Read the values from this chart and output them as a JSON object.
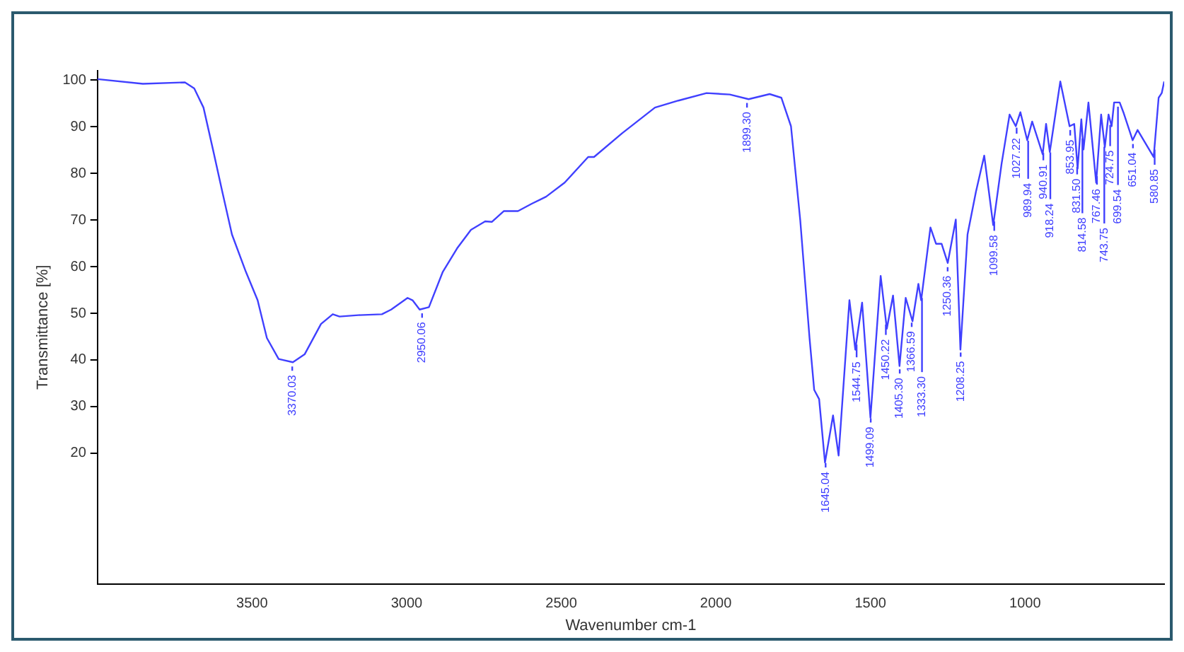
{
  "chart_data": {
    "type": "line",
    "xlabel": "Wavenumber cm-1",
    "ylabel": "Transmittance [%]",
    "xlim": [
      4000,
      550
    ],
    "xticks": [
      3500,
      3000,
      2500,
      2000,
      1500,
      1000
    ],
    "ylim": [
      -8,
      102
    ],
    "yticks": [
      20,
      30,
      40,
      50,
      60,
      70,
      80,
      90,
      100
    ],
    "grid": false,
    "series": [
      {
        "color": "#4040ff",
        "x": [
          4000,
          3853,
          3717,
          3687,
          3657,
          3626,
          3596,
          3565,
          3520,
          3482,
          3452,
          3414,
          3368,
          3330,
          3277,
          3239,
          3217,
          3156,
          3080,
          3050,
          2997,
          2981,
          2958,
          2928,
          2883,
          2837,
          2792,
          2746,
          2724,
          2686,
          2640,
          2595,
          2549,
          2489,
          2413,
          2394,
          2303,
          2197,
          2121,
          2030,
          1955,
          1894,
          1826,
          1788,
          1757,
          1727,
          1697,
          1682,
          1666,
          1647,
          1621,
          1603,
          1568,
          1549,
          1527,
          1500,
          1467,
          1447,
          1427,
          1406,
          1386,
          1364,
          1345,
          1336,
          1306,
          1288,
          1270,
          1250,
          1224,
          1209,
          1186,
          1159,
          1132,
          1103,
          1076,
          1050,
          1030,
          1015,
          993,
          977,
          943,
          932,
          920,
          886,
          856,
          841,
          830,
          818,
          811,
          795,
          770,
          754,
          742,
          730,
          720,
          712,
          694,
          682,
          652,
          636,
          584,
          568,
          558,
          550
        ],
        "values": [
          100.2,
          99.2,
          99.5,
          98.2,
          94.1,
          85,
          76,
          66.9,
          58.9,
          52.8,
          44.7,
          40.2,
          39.5,
          41.2,
          47.7,
          49.8,
          49.3,
          49.6,
          49.8,
          50.8,
          53.3,
          52.8,
          50.8,
          51.3,
          58.9,
          63.9,
          67.9,
          69.7,
          69.6,
          71.9,
          71.9,
          73.5,
          75,
          78,
          83.5,
          83.5,
          88.6,
          94.1,
          95.6,
          97.2,
          96.9,
          95.9,
          97,
          96.2,
          90.1,
          69.9,
          44.7,
          33.6,
          31.6,
          18,
          28.1,
          19.5,
          52.8,
          42.2,
          52.3,
          27.6,
          58,
          46.7,
          53.8,
          38.7,
          53.3,
          48.3,
          56.3,
          52.8,
          68.4,
          64.9,
          64.9,
          60.8,
          70.1,
          42.2,
          66.9,
          76,
          83.8,
          68.9,
          82,
          92.6,
          90.1,
          93.1,
          87.1,
          91.1,
          84.1,
          90.6,
          84.6,
          99.7,
          90.1,
          90.6,
          81,
          91.6,
          85.1,
          95.2,
          78,
          92.6,
          85.6,
          92.6,
          90.1,
          95.2,
          95.2,
          93.1,
          87.1,
          89.3,
          83.5,
          96.2,
          97.2,
          99.7
        ]
      }
    ],
    "annotations": [
      {
        "text": "3370.03",
        "x": 3370.03,
        "y": 39.5
      },
      {
        "text": "2950.06",
        "x": 2950.06,
        "y": 50.9
      },
      {
        "text": "1899.30",
        "x": 1899.3,
        "y": 96.0
      },
      {
        "text": "1645.04",
        "x": 1645.04,
        "y": 18.8
      },
      {
        "text": "1544.75",
        "x": 1544.75,
        "y": 44.2
      },
      {
        "text": "1499.09",
        "x": 1499.09,
        "y": 28.4
      },
      {
        "text": "1450.22",
        "x": 1450.22,
        "y": 48.5
      },
      {
        "text": "1405.30",
        "x": 1405.3,
        "y": 38.9
      },
      {
        "text": "1366.59",
        "x": 1366.59,
        "y": 48.9
      },
      {
        "text": "1333.30",
        "x": 1333.3,
        "y": 54.2
      },
      {
        "text": "1250.36",
        "x": 1250.36,
        "y": 60.8
      },
      {
        "text": "1208.25",
        "x": 1208.25,
        "y": 42.5
      },
      {
        "text": "1099.58",
        "x": 1099.58,
        "y": 70.6
      },
      {
        "text": "1027.22",
        "x": 1027.22,
        "y": 90.7
      },
      {
        "text": "989.94",
        "x": 989.94,
        "y": 87.9
      },
      {
        "text": "940.91",
        "x": 940.91,
        "y": 85.3
      },
      {
        "text": "918.24",
        "x": 918.24,
        "y": 85.4
      },
      {
        "text": "853.95",
        "x": 853.95,
        "y": 90.2
      },
      {
        "text": "831.50",
        "x": 831.5,
        "y": 82.3
      },
      {
        "text": "814.58",
        "x": 814.58,
        "y": 88.4
      },
      {
        "text": "767.46",
        "x": 767.46,
        "y": 80.3
      },
      {
        "text": "743.75",
        "x": 743.75,
        "y": 86.6
      },
      {
        "text": "724.75",
        "x": 724.75,
        "y": 91.3
      },
      {
        "text": "699.54",
        "x": 699.54,
        "y": 95.2
      },
      {
        "text": "651.04",
        "x": 651.04,
        "y": 87.2
      },
      {
        "text": "580.85",
        "x": 580.85,
        "y": 86.0
      }
    ]
  }
}
